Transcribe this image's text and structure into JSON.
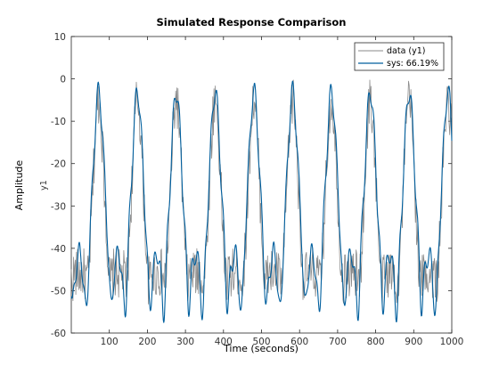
{
  "chart_data": {
    "type": "line",
    "title": "Simulated Response Comparison",
    "xlabel": "Time (seconds)",
    "ylabel": "Amplitude",
    "channel_label": "y1",
    "xlim": [
      0,
      1000
    ],
    "ylim": [
      -60,
      10
    ],
    "xticks": [
      100,
      200,
      300,
      400,
      500,
      600,
      700,
      800,
      900,
      1000
    ],
    "yticks": [
      10,
      0,
      -10,
      -20,
      -30,
      -40,
      -50,
      -60
    ],
    "grid": false,
    "legend_position": "top-right",
    "period_seconds": 102,
    "first_peak_seconds": 72,
    "series": [
      {
        "name": "data (y1)",
        "color": "#8a8a8a",
        "description_peak": -4,
        "description_trough": -48
      },
      {
        "name": "sys: 66.19%",
        "color": "#005f9e",
        "peak_values": [
          -3,
          -3,
          -3,
          -3,
          -3,
          -3,
          -3,
          -3,
          -3
        ],
        "trough_min": -56,
        "plateau": -45
      }
    ]
  }
}
